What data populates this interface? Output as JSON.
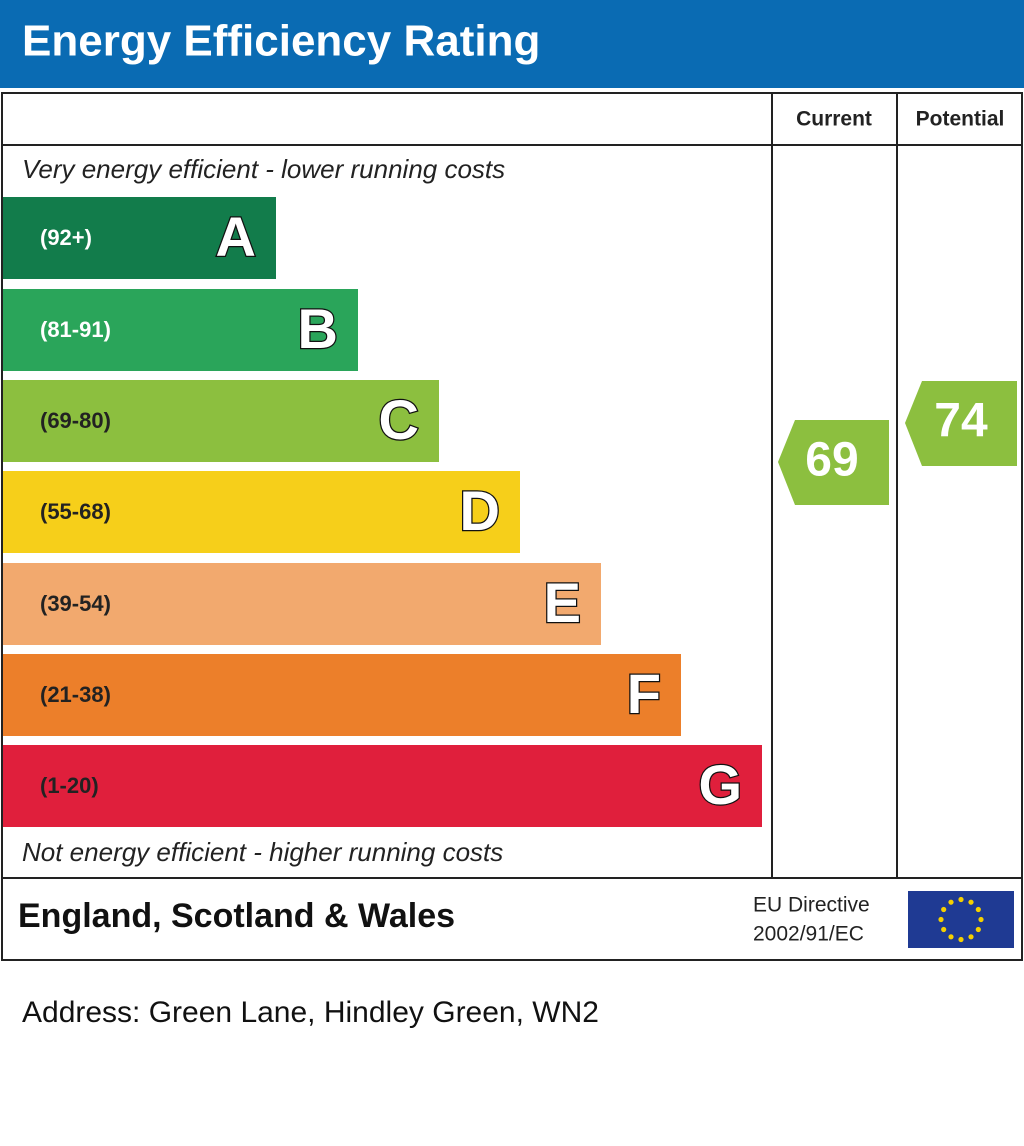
{
  "header": {
    "title": "Energy Efficiency Rating"
  },
  "columns": [
    "Current",
    "Potential"
  ],
  "top_note": "Very energy efficient - lower running costs",
  "bottom_note": "Not energy efficient - higher running costs",
  "bands": [
    {
      "range": "(92+)",
      "letter": "A",
      "color": "#127c4b",
      "text_color": "#ffffff"
    },
    {
      "range": "(81-91)",
      "letter": "B",
      "color": "#2aa55a",
      "text_color": "#ffffff"
    },
    {
      "range": "(69-80)",
      "letter": "C",
      "color": "#8cbf3f",
      "text_color": "#222222"
    },
    {
      "range": "(55-68)",
      "letter": "D",
      "color": "#f6cf1a",
      "text_color": "#222222"
    },
    {
      "range": "(39-54)",
      "letter": "E",
      "color": "#f2a96e",
      "text_color": "#222222"
    },
    {
      "range": "(21-38)",
      "letter": "F",
      "color": "#ec7f2a",
      "text_color": "#222222"
    },
    {
      "range": "(1-20)",
      "letter": "G",
      "color": "#e01f3c",
      "text_color": "#222222"
    }
  ],
  "current": {
    "value": 69,
    "color": "#8cbf3f"
  },
  "potential": {
    "value": 74,
    "color": "#8cbf3f"
  },
  "footer": {
    "region": "England, Scotland & Wales",
    "directive": [
      "EU Directive",
      "2002/91/EC"
    ]
  },
  "address": "Address: Green Lane, Hindley Green, WN2"
}
